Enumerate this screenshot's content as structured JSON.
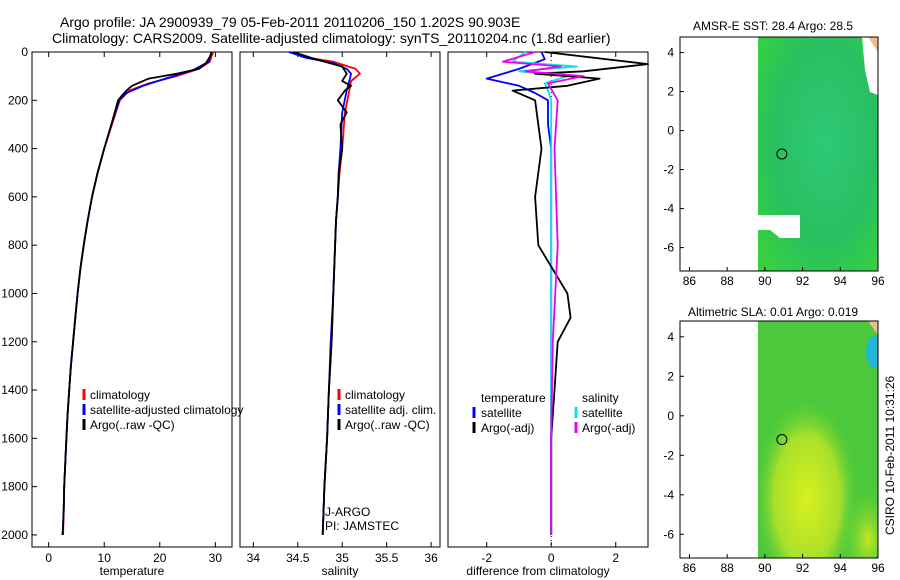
{
  "title_line1": "Argo profile: JA 2900939_79 05-Feb-2011 20110206_150 1.202S 90.903E",
  "title_line2": "Climatology: CARS2009. Satellite-adjusted climatology: synTS_20110204.nc (1.8d earlier)",
  "side_label": "CSIRO 10-Feb-2011 10:31:26",
  "colors": {
    "clim": "#ff0000",
    "sat": "#0000ff",
    "argo": "#000000",
    "sal_sat": "#00e5ee",
    "sal_argo": "#ee00ee"
  },
  "chart_data": [
    {
      "type": "line",
      "id": "temperature",
      "xlabel": "temperature",
      "xlim": [
        -3,
        33
      ],
      "ylim": [
        2050,
        0
      ],
      "xticks": [
        0,
        10,
        20,
        30
      ],
      "yticks": [
        0,
        200,
        400,
        600,
        800,
        1000,
        1200,
        1400,
        1600,
        1800,
        2000
      ],
      "legend": [
        "climatology",
        "satellite-adjusted climatology",
        "Argo(..raw -QC)"
      ],
      "series": [
        {
          "name": "climatology",
          "color": "clim",
          "points": [
            [
              29.6,
              0
            ],
            [
              29.0,
              40
            ],
            [
              27.0,
              70
            ],
            [
              23.0,
              100
            ],
            [
              18.0,
              130
            ],
            [
              14.5,
              160
            ],
            [
              12.8,
              200
            ],
            [
              11.4,
              300
            ],
            [
              10.0,
              400
            ],
            [
              8.8,
              500
            ],
            [
              7.8,
              600
            ],
            [
              7.0,
              700
            ],
            [
              6.3,
              800
            ],
            [
              5.7,
              900
            ],
            [
              5.2,
              1000
            ],
            [
              4.8,
              1100
            ],
            [
              4.4,
              1200
            ],
            [
              4.0,
              1300
            ],
            [
              3.7,
              1400
            ],
            [
              3.4,
              1500
            ],
            [
              3.2,
              1600
            ],
            [
              3.0,
              1700
            ],
            [
              2.8,
              1800
            ],
            [
              2.7,
              1900
            ],
            [
              2.6,
              2000
            ]
          ]
        },
        {
          "name": "satellite",
          "color": "sat",
          "points": [
            [
              29.3,
              0
            ],
            [
              28.8,
              40
            ],
            [
              26.0,
              75
            ],
            [
              21.0,
              110
            ],
            [
              17.0,
              140
            ],
            [
              14.0,
              170
            ],
            [
              12.7,
              200
            ],
            [
              11.3,
              300
            ],
            [
              10.0,
              400
            ],
            [
              8.8,
              500
            ],
            [
              7.8,
              600
            ],
            [
              7.0,
              700
            ],
            [
              6.3,
              800
            ],
            [
              5.7,
              900
            ],
            [
              5.2,
              1000
            ],
            [
              4.8,
              1100
            ],
            [
              4.4,
              1200
            ],
            [
              4.0,
              1300
            ],
            [
              3.7,
              1400
            ],
            [
              3.4,
              1500
            ],
            [
              3.2,
              1600
            ],
            [
              3.0,
              1700
            ],
            [
              2.8,
              1800
            ],
            [
              2.7,
              1900
            ],
            [
              2.5,
              2000
            ]
          ]
        },
        {
          "name": "Argo",
          "color": "argo",
          "points": [
            [
              29.4,
              0
            ],
            [
              29.0,
              20
            ],
            [
              28.2,
              50
            ],
            [
              27.0,
              70
            ],
            [
              23.0,
              90
            ],
            [
              18.0,
              110
            ],
            [
              15.0,
              140
            ],
            [
              14.0,
              160
            ],
            [
              13.2,
              180
            ],
            [
              12.5,
              200
            ],
            [
              11.3,
              300
            ],
            [
              10.0,
              400
            ],
            [
              8.8,
              500
            ],
            [
              7.8,
              600
            ],
            [
              7.0,
              700
            ],
            [
              6.3,
              800
            ],
            [
              5.7,
              900
            ],
            [
              5.2,
              1000
            ],
            [
              4.8,
              1100
            ],
            [
              4.4,
              1200
            ],
            [
              4.0,
              1300
            ],
            [
              3.7,
              1400
            ],
            [
              3.4,
              1500
            ],
            [
              3.2,
              1600
            ],
            [
              3.0,
              1700
            ],
            [
              2.8,
              1800
            ],
            [
              2.7,
              1900
            ],
            [
              2.5,
              2000
            ]
          ]
        }
      ]
    },
    {
      "type": "line",
      "id": "salinity",
      "xlabel": "salinity",
      "xlim": [
        33.85,
        36.1
      ],
      "ylim": [
        2050,
        0
      ],
      "xticks": [
        34,
        34.5,
        35,
        35.5,
        36
      ],
      "legend": [
        "climatology",
        "satellite adj. clim.",
        "Argo(..raw -QC)"
      ],
      "annotation": [
        "J-ARGO",
        "PI: JAMSTEC"
      ],
      "series": [
        {
          "name": "climatology",
          "color": "clim",
          "points": [
            [
              34.45,
              0
            ],
            [
              34.55,
              20
            ],
            [
              34.9,
              40
            ],
            [
              35.15,
              70
            ],
            [
              35.2,
              90
            ],
            [
              35.1,
              120
            ],
            [
              35.08,
              160
            ],
            [
              35.03,
              250
            ],
            [
              35.0,
              400
            ],
            [
              34.97,
              500
            ],
            [
              34.95,
              600
            ],
            [
              34.93,
              700
            ],
            [
              34.92,
              800
            ],
            [
              34.9,
              1000
            ],
            [
              34.88,
              1200
            ],
            [
              34.85,
              1400
            ],
            [
              34.83,
              1600
            ],
            [
              34.8,
              1800
            ],
            [
              34.78,
              2000
            ]
          ]
        },
        {
          "name": "satellite",
          "color": "sat",
          "points": [
            [
              34.4,
              0
            ],
            [
              34.6,
              25
            ],
            [
              34.9,
              45
            ],
            [
              35.05,
              70
            ],
            [
              35.1,
              90
            ],
            [
              35.08,
              120
            ],
            [
              35.05,
              160
            ],
            [
              35.0,
              250
            ],
            [
              34.98,
              400
            ],
            [
              34.96,
              500
            ],
            [
              34.95,
              600
            ],
            [
              34.93,
              700
            ],
            [
              34.92,
              800
            ],
            [
              34.9,
              1000
            ],
            [
              34.87,
              1200
            ],
            [
              34.85,
              1400
            ],
            [
              34.83,
              1600
            ],
            [
              34.8,
              1800
            ],
            [
              34.78,
              2000
            ]
          ]
        },
        {
          "name": "Argo",
          "color": "argo",
          "points": [
            [
              34.45,
              0
            ],
            [
              34.7,
              30
            ],
            [
              35.0,
              60
            ],
            [
              35.05,
              90
            ],
            [
              35.0,
              120
            ],
            [
              35.1,
              140
            ],
            [
              35.03,
              160
            ],
            [
              34.95,
              200
            ],
            [
              35.05,
              250
            ],
            [
              34.98,
              300
            ],
            [
              35.0,
              400
            ],
            [
              34.96,
              500
            ],
            [
              34.95,
              600
            ],
            [
              34.93,
              700
            ],
            [
              34.92,
              800
            ],
            [
              34.9,
              1000
            ],
            [
              34.88,
              1200
            ],
            [
              34.85,
              1400
            ],
            [
              34.83,
              1600
            ],
            [
              34.8,
              1800
            ],
            [
              34.78,
              2000
            ]
          ]
        }
      ]
    },
    {
      "type": "line",
      "id": "difference",
      "xlabel": "difference from climatology",
      "xlim": [
        -3.2,
        3.0
      ],
      "ylim": [
        2050,
        0
      ],
      "xticks": [
        -2,
        0,
        2
      ],
      "legend_left_title": "temperature",
      "legend_right_title": "salinity",
      "legend_left": [
        "satellite",
        "Argo(-adj)"
      ],
      "legend_right": [
        "satellite",
        "Argo(-adj)"
      ],
      "series": [
        {
          "name": "temperature satellite",
          "color": "sat",
          "points": [
            [
              -0.3,
              0
            ],
            [
              -0.2,
              30
            ],
            [
              -1.0,
              70
            ],
            [
              -2.0,
              110
            ],
            [
              -1.0,
              140
            ],
            [
              -0.5,
              170
            ],
            [
              -0.1,
              200
            ],
            [
              -0.1,
              300
            ],
            [
              0,
              400
            ],
            [
              0,
              600
            ],
            [
              0,
              800
            ],
            [
              0,
              1000
            ],
            [
              0,
              1200
            ],
            [
              0,
              1400
            ],
            [
              0,
              1600
            ],
            [
              0,
              1800
            ],
            [
              0,
              2000
            ]
          ]
        },
        {
          "name": "salinity satellite",
          "color": "sal_sat",
          "points": [
            [
              -0.8,
              0
            ],
            [
              -1.2,
              40
            ],
            [
              0.8,
              60
            ],
            [
              -1.0,
              80
            ],
            [
              0.5,
              100
            ],
            [
              -0.2,
              130
            ],
            [
              -0.1,
              160
            ],
            [
              0,
              200
            ],
            [
              0,
              400
            ],
            [
              0,
              800
            ],
            [
              0,
              1200
            ],
            [
              0,
              1600
            ],
            [
              0,
              2000
            ]
          ]
        },
        {
          "name": "temperature Argo",
          "color": "argo",
          "points": [
            [
              -0.2,
              0
            ],
            [
              3.0,
              50
            ],
            [
              1.0,
              80
            ],
            [
              -0.5,
              90
            ],
            [
              1.5,
              110
            ],
            [
              0.5,
              140
            ],
            [
              -1.2,
              160
            ],
            [
              -0.5,
              200
            ],
            [
              -0.3,
              400
            ],
            [
              -0.5,
              600
            ],
            [
              -0.4,
              800
            ],
            [
              0.5,
              1000
            ],
            [
              0.6,
              1100
            ],
            [
              0.2,
              1200
            ],
            [
              0.1,
              1400
            ],
            [
              0,
              1600
            ],
            [
              0,
              1800
            ],
            [
              0,
              2000
            ]
          ]
        },
        {
          "name": "salinity Argo",
          "color": "sal_argo",
          "points": [
            [
              -0.5,
              0
            ],
            [
              -1.5,
              40
            ],
            [
              0.3,
              60
            ],
            [
              -0.8,
              80
            ],
            [
              1.0,
              100
            ],
            [
              -0.1,
              130
            ],
            [
              0.2,
              200
            ],
            [
              0.1,
              400
            ],
            [
              0.2,
              800
            ],
            [
              0.05,
              1200
            ],
            [
              0,
              1600
            ],
            [
              0,
              2000
            ]
          ]
        }
      ]
    },
    {
      "type": "heatmap",
      "id": "sst_map",
      "title": "AMSR-E SST: 28.4 Argo: 28.5",
      "xlim": [
        85.5,
        96
      ],
      "ylim": [
        -7.2,
        4.8
      ],
      "xticks": [
        86,
        88,
        90,
        92,
        94,
        96
      ],
      "yticks": [
        4,
        2,
        0,
        -2,
        -4,
        -6
      ],
      "data_extent_x": [
        89.8,
        96
      ],
      "marker": [
        90.903,
        -1.202
      ]
    },
    {
      "type": "heatmap",
      "id": "sla_map",
      "title": "Altimetric SLA: 0.01 Argo: 0.019",
      "xlim": [
        85.5,
        96
      ],
      "ylim": [
        -7.2,
        4.8
      ],
      "xticks": [
        86,
        88,
        90,
        92,
        94,
        96
      ],
      "yticks": [
        4,
        2,
        0,
        -2,
        -4,
        -6
      ],
      "data_extent_x": [
        89.8,
        96
      ],
      "marker": [
        90.903,
        -1.202
      ]
    }
  ]
}
